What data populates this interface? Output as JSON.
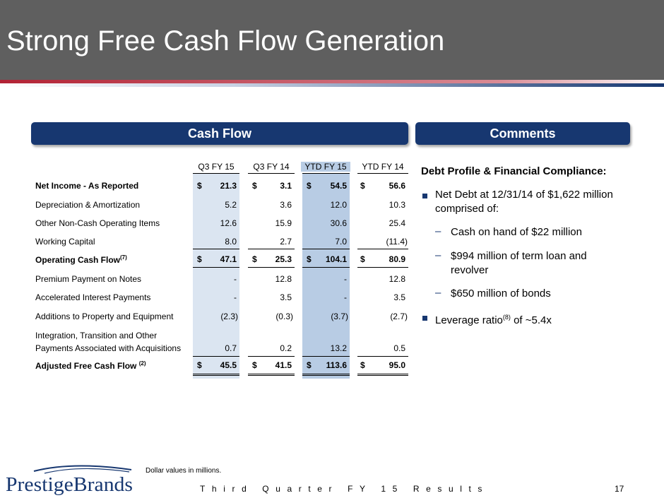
{
  "title": "Strong Free Cash Flow Generation",
  "sections": {
    "cash_flow": "Cash Flow",
    "comments": "Comments"
  },
  "table": {
    "columns": [
      "Q3 FY 15",
      "Q3 FY 14",
      "YTD FY 15",
      "YTD FY 14"
    ],
    "currency": "$",
    "rows": [
      {
        "label": "Net Income - As Reported",
        "values": [
          "21.3",
          "3.1",
          "54.5",
          "56.6"
        ]
      },
      {
        "label": "Depreciation & Amortization",
        "values": [
          "5.2",
          "3.6",
          "12.0",
          "10.3"
        ]
      },
      {
        "label": "Other Non-Cash Operating Items",
        "values": [
          "12.6",
          "15.9",
          "30.6",
          "25.4"
        ]
      },
      {
        "label": "Working Capital",
        "values": [
          "8.0",
          "2.7",
          "7.0",
          "(11.4)"
        ]
      },
      {
        "label": "Operating Cash Flow",
        "sup": "(7)",
        "values": [
          "47.1",
          "25.3",
          "104.1",
          "80.9"
        ]
      },
      {
        "label": "Premium Payment on Notes",
        "values": [
          "-",
          "12.8",
          "-",
          "12.8"
        ]
      },
      {
        "label": "Accelerated Interest Payments",
        "values": [
          "-",
          "3.5",
          "-",
          "3.5"
        ]
      },
      {
        "label": "Additions to Property and Equipment",
        "values": [
          "(2.3)",
          "(0.3)",
          "(3.7)",
          "(2.7)"
        ]
      },
      {
        "label_line1": "Integration, Transition and Other",
        "label_line2": "Payments Associated with Acquisitions",
        "values": [
          "0.7",
          "0.2",
          "13.2",
          "0.5"
        ]
      },
      {
        "label": "Adjusted Free Cash Flow",
        "sup": "(2)",
        "values": [
          "45.5",
          "41.5",
          "113.6",
          "95.0"
        ]
      }
    ]
  },
  "comments": {
    "heading": "Debt Profile & Financial Compliance:",
    "bullet1_line1": "Net Debt at 12/31/14 of $1,622 million",
    "bullet1_line2": "comprised of:",
    "sub1": "Cash on hand of $22 million",
    "sub2_line1": "$994 million of term loan and",
    "sub2_line2": "revolver",
    "sub3": "$650 million of bonds",
    "bullet2_pre": "Leverage ratio",
    "bullet2_sup": "(8)",
    "bullet2_post": " of ~5.4x",
    "dash": "–"
  },
  "footnote": "Dollar values in millions.",
  "logo_text": "PrestigeBrands",
  "footer": "Third Quarter FY 15 Results",
  "page_number": "17",
  "colors": {
    "navy": "#173770",
    "header_gray": "#5f5f5f",
    "shade_light": "#dbe5f1",
    "shade_ytd": "#b8cce4",
    "swoosh_red": "#b22234"
  }
}
